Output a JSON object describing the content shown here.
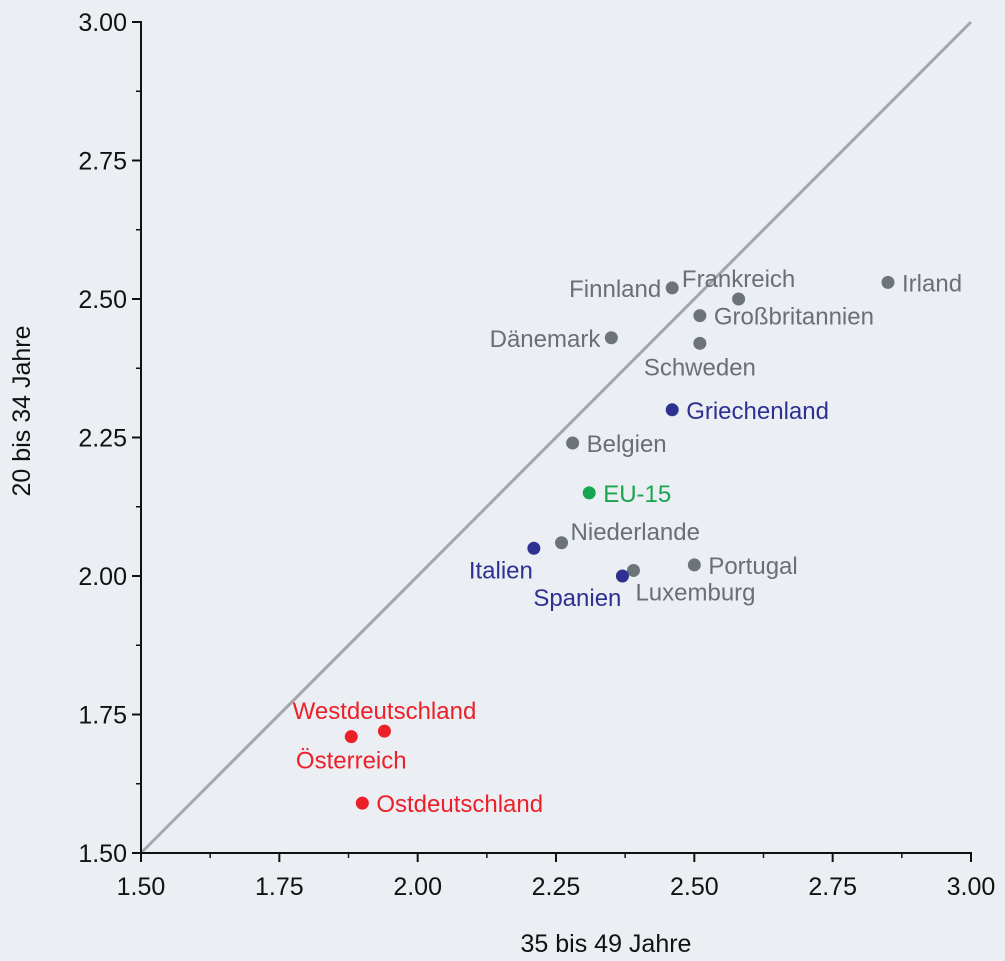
{
  "chart_data": {
    "type": "scatter",
    "title": "",
    "xlabel": "35 bis 49 Jahre",
    "ylabel": "20 bis 34 Jahre",
    "xlim": [
      1.5,
      3.0
    ],
    "ylim": [
      1.5,
      3.0
    ],
    "x_ticks": [
      "1.50",
      "1.75",
      "2.00",
      "2.25",
      "2.50",
      "2.75",
      "3.00"
    ],
    "y_ticks": [
      "1.50",
      "1.75",
      "2.00",
      "2.25",
      "2.50",
      "2.75",
      "3.00"
    ],
    "grid": false,
    "legend": "none",
    "reference_line": {
      "from": [
        1.5,
        1.5
      ],
      "to": [
        3.0,
        3.0
      ],
      "color": "#a3a7ab"
    },
    "colors": {
      "gray": "#6d7478",
      "gray_label": "#6a6f73",
      "blue": "#2e3192",
      "green": "#19a550",
      "red": "#ec2029",
      "axis": "#111111"
    },
    "points": [
      {
        "label": "Finnland",
        "x": 2.46,
        "y": 2.52,
        "color": "gray",
        "label_pos": "left"
      },
      {
        "label": "Frankreich",
        "x": 2.58,
        "y": 2.5,
        "color": "gray",
        "label_pos": "above"
      },
      {
        "label": "Irland",
        "x": 2.85,
        "y": 2.53,
        "color": "gray",
        "label_pos": "right"
      },
      {
        "label": "Großbritannien",
        "x": 2.51,
        "y": 2.47,
        "color": "gray",
        "label_pos": "right"
      },
      {
        "label": "Dänemark",
        "x": 2.35,
        "y": 2.43,
        "color": "gray",
        "label_pos": "left"
      },
      {
        "label": "Schweden",
        "x": 2.51,
        "y": 2.42,
        "color": "gray",
        "label_pos": "below"
      },
      {
        "label": "Griechenland",
        "x": 2.46,
        "y": 2.3,
        "color": "blue",
        "label_pos": "right"
      },
      {
        "label": "Belgien",
        "x": 2.28,
        "y": 2.24,
        "color": "gray",
        "label_pos": "right"
      },
      {
        "label": "EU-15",
        "x": 2.31,
        "y": 2.15,
        "color": "green",
        "label_pos": "right"
      },
      {
        "label": "Niederlande",
        "x": 2.26,
        "y": 2.06,
        "color": "gray",
        "label_pos": "above-right"
      },
      {
        "label": "Italien",
        "x": 2.21,
        "y": 2.05,
        "color": "blue",
        "label_pos": "below-left"
      },
      {
        "label": "Portugal",
        "x": 2.5,
        "y": 2.02,
        "color": "gray",
        "label_pos": "right"
      },
      {
        "label": "Luxemburg",
        "x": 2.39,
        "y": 2.01,
        "color": "gray",
        "label_pos": "below-right"
      },
      {
        "label": "Spanien",
        "x": 2.37,
        "y": 2.0,
        "color": "blue",
        "label_pos": "below-left"
      },
      {
        "label": "Westdeutschland",
        "x": 1.94,
        "y": 1.72,
        "color": "red",
        "label_pos": "above"
      },
      {
        "label": "Österreich",
        "x": 1.88,
        "y": 1.71,
        "color": "red",
        "label_pos": "below"
      },
      {
        "label": "Ostdeutschland",
        "x": 1.9,
        "y": 1.59,
        "color": "red",
        "label_pos": "right"
      }
    ]
  }
}
